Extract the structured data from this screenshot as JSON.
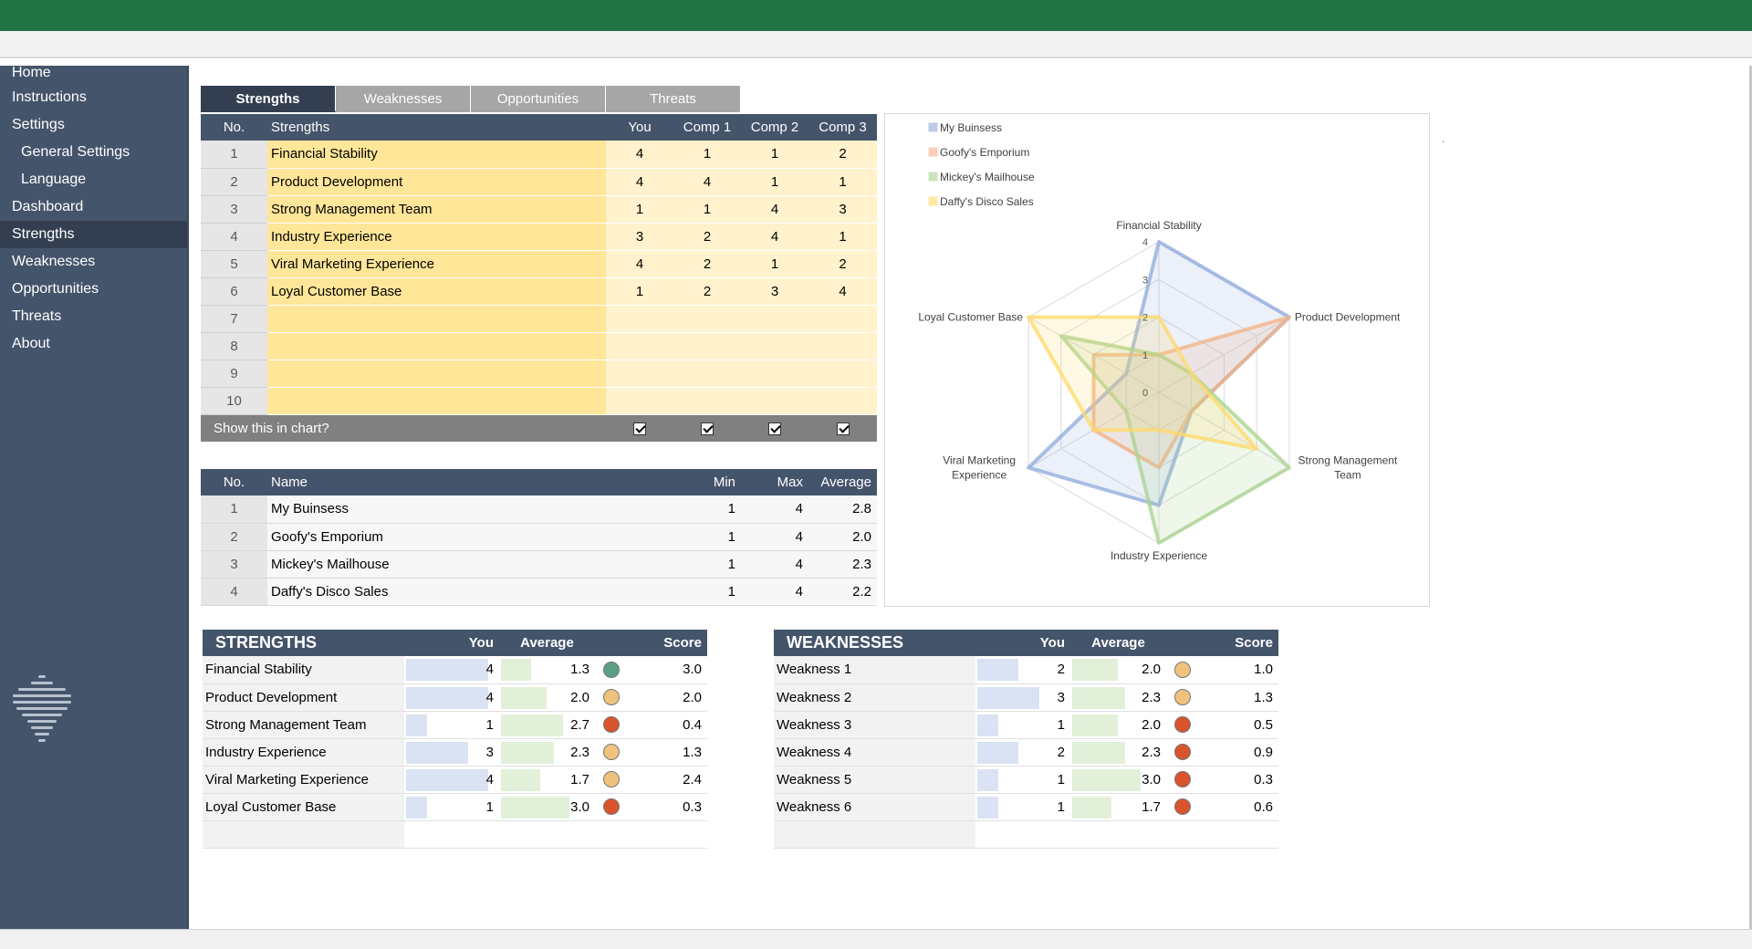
{
  "sidebar": {
    "items": [
      {
        "label": "Home",
        "sub": false,
        "active": false
      },
      {
        "label": "Instructions",
        "sub": false,
        "active": false
      },
      {
        "label": "Settings",
        "sub": false,
        "active": false
      },
      {
        "label": "General Settings",
        "sub": true,
        "active": false
      },
      {
        "label": "Language",
        "sub": true,
        "active": false
      },
      {
        "label": "Dashboard",
        "sub": false,
        "active": false
      },
      {
        "label": "Strengths",
        "sub": false,
        "active": true
      },
      {
        "label": "Weaknesses",
        "sub": false,
        "active": false
      },
      {
        "label": "Opportunities",
        "sub": false,
        "active": false
      },
      {
        "label": "Threats",
        "sub": false,
        "active": false
      },
      {
        "label": "About",
        "sub": false,
        "active": false
      }
    ]
  },
  "tabs": [
    {
      "label": "Strengths",
      "active": true
    },
    {
      "label": "Weaknesses",
      "active": false
    },
    {
      "label": "Opportunities",
      "active": false
    },
    {
      "label": "Threats",
      "active": false
    }
  ],
  "strength_table": {
    "headers": {
      "no": "No.",
      "name": "Strengths",
      "you": "You",
      "c1": "Comp 1",
      "c2": "Comp 2",
      "c3": "Comp 3"
    },
    "rows": [
      {
        "no": "1",
        "name": "Financial Stability",
        "you": "4",
        "c1": "1",
        "c2": "1",
        "c3": "2"
      },
      {
        "no": "2",
        "name": "Product Development",
        "you": "4",
        "c1": "4",
        "c2": "1",
        "c3": "1"
      },
      {
        "no": "3",
        "name": "Strong Management Team",
        "you": "1",
        "c1": "1",
        "c2": "4",
        "c3": "3"
      },
      {
        "no": "4",
        "name": "Industry Experience",
        "you": "3",
        "c1": "2",
        "c2": "4",
        "c3": "1"
      },
      {
        "no": "5",
        "name": "Viral Marketing Experience",
        "you": "4",
        "c1": "2",
        "c2": "1",
        "c3": "2"
      },
      {
        "no": "6",
        "name": "Loyal Customer Base",
        "you": "1",
        "c1": "2",
        "c2": "3",
        "c3": "4"
      },
      {
        "no": "7",
        "name": "",
        "you": "",
        "c1": "",
        "c2": "",
        "c3": ""
      },
      {
        "no": "8",
        "name": "",
        "you": "",
        "c1": "",
        "c2": "",
        "c3": ""
      },
      {
        "no": "9",
        "name": "",
        "you": "",
        "c1": "",
        "c2": "",
        "c3": ""
      },
      {
        "no": "10",
        "name": "",
        "you": "",
        "c1": "",
        "c2": "",
        "c3": ""
      }
    ],
    "show_label": "Show this in chart?"
  },
  "summary_table": {
    "headers": {
      "no": "No.",
      "name": "Name",
      "min": "Min",
      "max": "Max",
      "avg": "Average"
    },
    "rows": [
      {
        "no": "1",
        "name": "My Buinsess",
        "min": "1",
        "max": "4",
        "avg": "2.8"
      },
      {
        "no": "2",
        "name": "Goofy's Emporium",
        "min": "1",
        "max": "4",
        "avg": "2.0"
      },
      {
        "no": "3",
        "name": "Mickey's Mailhouse",
        "min": "1",
        "max": "4",
        "avg": "2.3"
      },
      {
        "no": "4",
        "name": "Daffy's Disco Sales",
        "min": "1",
        "max": "4",
        "avg": "2.2"
      }
    ]
  },
  "strengths_score": {
    "title": "STRENGTHS",
    "headers": {
      "you": "You",
      "avg": "Average",
      "score": "Score"
    },
    "rows": [
      {
        "name": "Financial Stability",
        "you": "4",
        "avg": "1.3",
        "score": "3.0",
        "status": "#5b9e84"
      },
      {
        "name": "Product Development",
        "you": "4",
        "avg": "2.0",
        "score": "2.0",
        "status": "#efc27e"
      },
      {
        "name": "Strong Management Team",
        "you": "1",
        "avg": "2.7",
        "score": "0.4",
        "status": "#d9532c"
      },
      {
        "name": "Industry Experience",
        "you": "3",
        "avg": "2.3",
        "score": "1.3",
        "status": "#efc27e"
      },
      {
        "name": "Viral Marketing Experience",
        "you": "4",
        "avg": "1.7",
        "score": "2.4",
        "status": "#efc27e"
      },
      {
        "name": "Loyal Customer Base",
        "you": "1",
        "avg": "3.0",
        "score": "0.3",
        "status": "#d9532c"
      }
    ]
  },
  "weaknesses_score": {
    "title": "WEAKNESSES",
    "headers": {
      "you": "You",
      "avg": "Average",
      "score": "Score"
    },
    "rows": [
      {
        "name": "Weakness 1",
        "you": "2",
        "avg": "2.0",
        "score": "1.0",
        "status": "#efc27e"
      },
      {
        "name": "Weakness 2",
        "you": "3",
        "avg": "2.3",
        "score": "1.3",
        "status": "#efc27e"
      },
      {
        "name": "Weakness 3",
        "you": "1",
        "avg": "2.0",
        "score": "0.5",
        "status": "#d9532c"
      },
      {
        "name": "Weakness 4",
        "you": "2",
        "avg": "2.3",
        "score": "0.9",
        "status": "#d9532c"
      },
      {
        "name": "Weakness 5",
        "you": "1",
        "avg": "3.0",
        "score": "0.3",
        "status": "#d9532c"
      },
      {
        "name": "Weakness 6",
        "you": "1",
        "avg": "1.7",
        "score": "0.6",
        "status": "#d9532c"
      }
    ]
  },
  "chart_data": {
    "type": "radar",
    "categories": [
      "Financial Stability",
      "Product Development",
      "Strong Management Team",
      "Industry Experience",
      "Viral Marketing Experience",
      "Loyal Customer Base"
    ],
    "category_labels": [
      "Financial Stability",
      "Product Development",
      "Strong Management\nTeam",
      "Industry Experience",
      "Viral Marketing\nExperience",
      "Loyal Customer Base"
    ],
    "ticks": [
      "0",
      "1",
      "2",
      "3",
      "4"
    ],
    "range": [
      0,
      4
    ],
    "legend_position": "top-left",
    "series": [
      {
        "name": "My Buinsess",
        "values": [
          4,
          4,
          1,
          3,
          4,
          1
        ],
        "color": "#8faadc"
      },
      {
        "name": "Goofy's Emporium",
        "values": [
          1,
          4,
          1,
          2,
          2,
          2
        ],
        "color": "#f4b183"
      },
      {
        "name": "Mickey's Mailhouse",
        "values": [
          1,
          1,
          4,
          4,
          1,
          3
        ],
        "color": "#a9d18e"
      },
      {
        "name": "Daffy's Disco Sales",
        "values": [
          2,
          1,
          3,
          1,
          2,
          4
        ],
        "color": "#ffd966"
      }
    ]
  }
}
